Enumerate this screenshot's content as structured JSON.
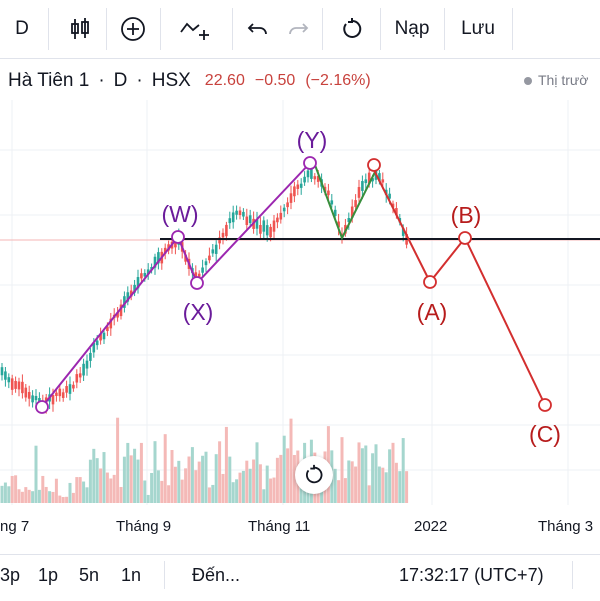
{
  "toolbar": {
    "interval": "D",
    "load_label": "Nạp",
    "save_label": "Lưu"
  },
  "legend": {
    "symbol": "Hà Tiên 1",
    "interval": "D",
    "exchange": "HSX",
    "price": "22.60",
    "change": "−0.50",
    "change_pct": "(−2.16%)",
    "market_status": "Thị trườ"
  },
  "x_axis": [
    "ng 7",
    "Tháng 9",
    "Tháng 11",
    "2022",
    "Tháng 3"
  ],
  "wave_labels": {
    "w": "(W)",
    "x": "(X)",
    "y": "(Y)",
    "a": "(A)",
    "b": "(B)",
    "c": "(C)"
  },
  "bottom_bar": {
    "r1": "3p",
    "r2": "1p",
    "r3": "5n",
    "r4": "1n",
    "goto": "Đến...",
    "clock": "17:32:17 (UTC+7)"
  },
  "colors": {
    "up": "#26a69a",
    "down": "#ef5350",
    "wave_purple": "#9c27b0",
    "wave_green": "#388e3c",
    "wave_red": "#d32f2f",
    "label_purple": "#6a1b9a",
    "label_red": "#b71c1c"
  }
}
